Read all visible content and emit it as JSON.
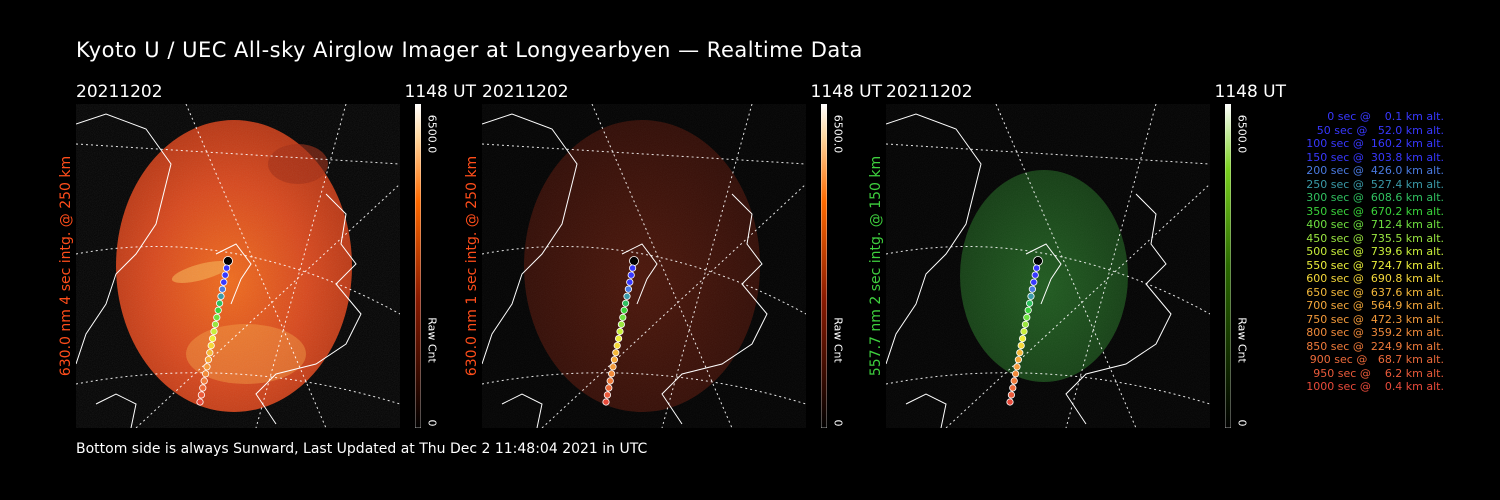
{
  "title": "Kyoto U / UEC All-sky Airglow Imager at Longyearbyen — Realtime Data",
  "footer": "Bottom side is always Sunward, Last Updated at Thu Dec  2 11:48:04 2021 in UTC",
  "panels": [
    {
      "date": "20211202",
      "time": "1148 UT",
      "ylabel": "630.0 nm 4 sec intg. @ 250 km",
      "cb_max": "6500.0",
      "cb_min": "0",
      "cb_unit": "Raw Cnt",
      "accent": "#ff4d1a",
      "glow": "bright"
    },
    {
      "date": "20211202",
      "time": "1148 UT",
      "ylabel": "630.0 nm 1 sec intg. @ 250 km",
      "cb_max": "6500.0",
      "cb_min": "0",
      "cb_unit": "Raw Cnt",
      "accent": "#ff4d1a",
      "glow": "dim"
    },
    {
      "date": "20211202",
      "time": "1148 UT",
      "ylabel": "557.7 nm 2 sec intg. @ 150 km",
      "cb_max": "6500.0",
      "cb_min": "0",
      "cb_unit": "Raw Cnt",
      "accent": "#3ecf3e",
      "glow": "green"
    }
  ],
  "legend": [
    {
      "text": "   0 sec @    0.1 km alt.",
      "color": "#3838ff"
    },
    {
      "text": "  50 sec @   52.0 km alt.",
      "color": "#3838ff"
    },
    {
      "text": " 100 sec @  160.2 km alt.",
      "color": "#3838ff"
    },
    {
      "text": " 150 sec @  303.8 km alt.",
      "color": "#3838ff"
    },
    {
      "text": " 200 sec @  426.0 km alt.",
      "color": "#4a7ae0"
    },
    {
      "text": " 250 sec @  527.4 km alt.",
      "color": "#3a9aa8"
    },
    {
      "text": " 300 sec @  608.6 km alt.",
      "color": "#30c060"
    },
    {
      "text": " 350 sec @  670.2 km alt.",
      "color": "#3ad23a"
    },
    {
      "text": " 400 sec @  712.4 km alt.",
      "color": "#6ee040"
    },
    {
      "text": " 450 sec @  735.5 km alt.",
      "color": "#9ae640"
    },
    {
      "text": " 500 sec @  739.6 km alt.",
      "color": "#c8ee3a"
    },
    {
      "text": " 550 sec @  724.7 km alt.",
      "color": "#ecee3a"
    },
    {
      "text": " 600 sec @  690.8 km alt.",
      "color": "#f4d83a"
    },
    {
      "text": " 650 sec @  637.6 km alt.",
      "color": "#f4b83a"
    },
    {
      "text": " 700 sec @  564.9 km alt.",
      "color": "#f4a83a"
    },
    {
      "text": " 750 sec @  472.3 km alt.",
      "color": "#f49a3a"
    },
    {
      "text": " 800 sec @  359.2 km alt.",
      "color": "#f08a3a"
    },
    {
      "text": " 850 sec @  224.9 km alt.",
      "color": "#ee7a3a"
    },
    {
      "text": " 900 sec @   68.7 km alt.",
      "color": "#ec6a3a"
    },
    {
      "text": " 950 sec @    6.2 km alt.",
      "color": "#ea5a3a"
    },
    {
      "text": "1000 sec @    0.4 km alt.",
      "color": "#e84a3a"
    }
  ]
}
